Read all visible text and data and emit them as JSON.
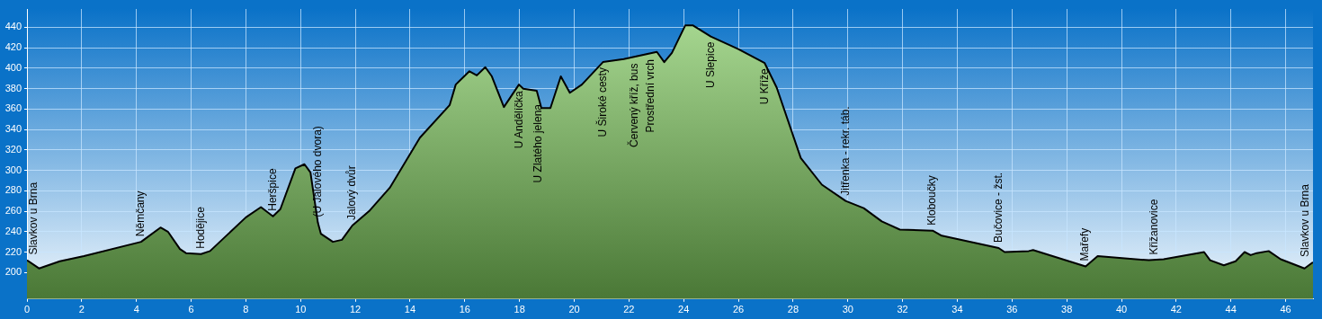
{
  "chart_data": {
    "type": "area",
    "x": [
      0,
      0.44,
      1.2,
      2.08,
      4.17,
      4.88,
      5.15,
      5.59,
      5.81,
      6.36,
      6.69,
      8.0,
      8.55,
      8.99,
      9.26,
      9.81,
      10.14,
      10.36,
      10.63,
      10.74,
      11.18,
      11.51,
      11.89,
      12.5,
      13.26,
      14.36,
      15.45,
      15.67,
      16.17,
      16.44,
      16.75,
      16.99,
      17.43,
      17.98,
      18.14,
      18.63,
      18.8,
      19.13,
      19.51,
      19.84,
      20.28,
      21.05,
      21.81,
      23.02,
      23.29,
      23.57,
      24.06,
      24.33,
      24.99,
      25.98,
      26.96,
      27.4,
      28.28,
      29.05,
      29.92,
      30.58,
      31.24,
      31.9,
      33.1,
      33.43,
      35.51,
      35.73,
      36.61,
      36.77,
      38.69,
      39.13,
      41.0,
      41.54,
      43.02,
      43.24,
      43.74,
      44.17,
      44.5,
      44.72,
      44.94,
      45.38,
      45.82,
      46.69,
      47.0
    ],
    "series": [
      {
        "color": "#7cc85a",
        "values": [
          212,
          204,
          211,
          216,
          230,
          244,
          240,
          223,
          219,
          218,
          221,
          254,
          264,
          255,
          262,
          302,
          306,
          298,
          249,
          238,
          230,
          232,
          246,
          260,
          283,
          332,
          364,
          384,
          397,
          393,
          401,
          392,
          362,
          384,
          380,
          378,
          361,
          361,
          392,
          376,
          384,
          406,
          409,
          416,
          406,
          415,
          442,
          442,
          431,
          419,
          405,
          381,
          312,
          286,
          270,
          263,
          250,
          242,
          241,
          236,
          224,
          220,
          221,
          222,
          206,
          216,
          212,
          213,
          220,
          212,
          207,
          211,
          220,
          217,
          219,
          221,
          213,
          204,
          210
        ]
      }
    ],
    "xlim": [
      0,
      47
    ],
    "xticks": [
      0,
      2,
      4,
      6,
      8,
      10,
      12,
      14,
      16,
      18,
      20,
      22,
      24,
      26,
      28,
      30,
      32,
      34,
      36,
      38,
      40,
      42,
      44,
      46
    ],
    "ylim": [
      174,
      458
    ],
    "yticks": [
      200,
      220,
      240,
      260,
      280,
      300,
      320,
      340,
      360,
      380,
      400,
      420,
      440
    ],
    "grid": true,
    "legend": false,
    "annotations": [
      {
        "text": "Slavkov u Brna",
        "x": 0,
        "y": 212
      },
      {
        "text": "Němčany",
        "x": 4.17,
        "y": 230
      },
      {
        "text": "Hodějice",
        "x": 6.36,
        "y": 218
      },
      {
        "text": "Heršpice",
        "x": 8.99,
        "y": 255
      },
      {
        "text": "(U Jalového dvora)",
        "x": 10.63,
        "y": 249
      },
      {
        "text": "Jalový dvůr",
        "x": 11.89,
        "y": 246
      },
      {
        "text": "U Andělíčka",
        "x": 18.0,
        "y": 383
      },
      {
        "text": "U Zlatého jelena",
        "x": 18.7,
        "y": 370
      },
      {
        "text": "U Široké cesty",
        "x": 21.05,
        "y": 406
      },
      {
        "text": "Červený kříž, bus",
        "x": 22.2,
        "y": 410
      },
      {
        "text": "Prostřední vrch",
        "x": 22.8,
        "y": 414
      },
      {
        "text": "U Slepice",
        "x": 25.0,
        "y": 431
      },
      {
        "text": "U Kříže",
        "x": 26.96,
        "y": 405
      },
      {
        "text": "Jitřenka - rekr. táb.",
        "x": 29.92,
        "y": 270
      },
      {
        "text": "Kloboučky",
        "x": 33.1,
        "y": 241
      },
      {
        "text": "Bučovice - žst.",
        "x": 35.51,
        "y": 224
      },
      {
        "text": "Mařefy",
        "x": 38.69,
        "y": 206
      },
      {
        "text": "Křižanovice",
        "x": 41.2,
        "y": 212
      },
      {
        "text": "Slavkov u Brna",
        "x": 47.0,
        "y": 210
      }
    ]
  }
}
